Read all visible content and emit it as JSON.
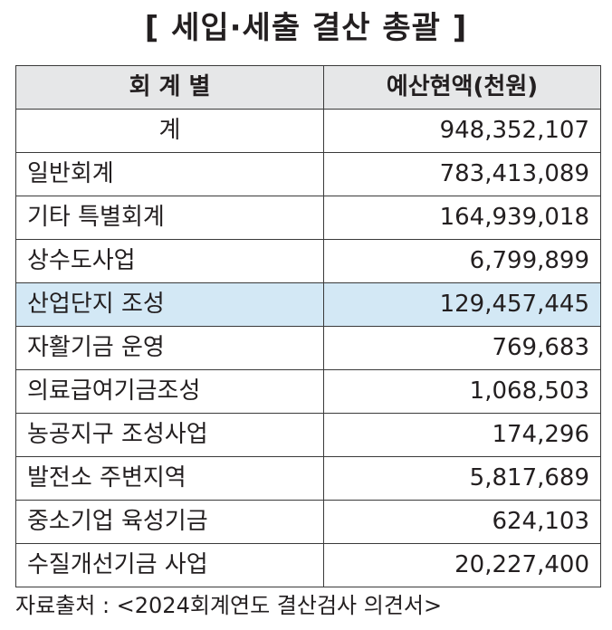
{
  "title": "[ 세입·세출 결산 총괄 ]",
  "table": {
    "headers": [
      "회 계 별",
      "예산현액(천원)"
    ],
    "rows": [
      {
        "name": "계",
        "amount": "948,352,107"
      },
      {
        "name": "일반회계",
        "amount": "783,413,089"
      },
      {
        "name": "기타 특별회계",
        "amount": "164,939,018"
      },
      {
        "name": "상수도사업",
        "amount": "6,799,899"
      },
      {
        "name": "산업단지 조성",
        "amount": "129,457,445"
      },
      {
        "name": "자활기금 운영",
        "amount": "769,683"
      },
      {
        "name": "의료급여기금조성",
        "amount": "1,068,503"
      },
      {
        "name": "농공지구 조성사업",
        "amount": "174,296"
      },
      {
        "name": "발전소 주변지역",
        "amount": "5,817,689"
      },
      {
        "name": "중소기업 육성기금",
        "amount": "624,103"
      },
      {
        "name": "수질개선기금 사업",
        "amount": "20,227,400"
      }
    ],
    "highlight_color": "#d3e8f5",
    "header_bg": "#e6e7e8"
  },
  "source": "자료출처 : <2024회계연도 결산검사 의견서>"
}
